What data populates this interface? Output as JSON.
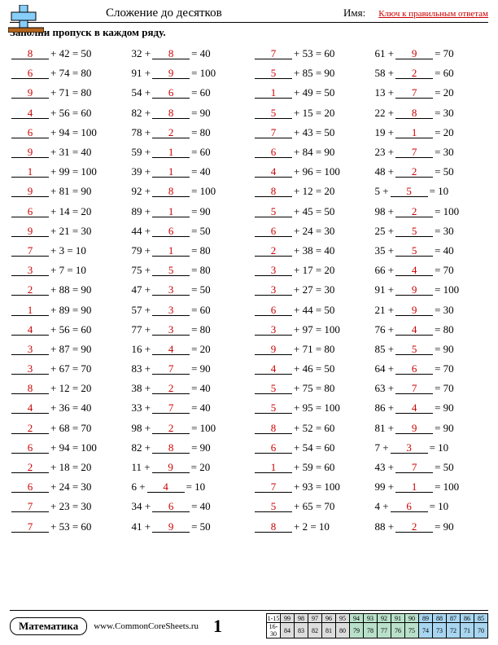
{
  "header": {
    "title": "Сложение до десятков",
    "name_label": "Имя:",
    "answer_key": "Ключ к правильным ответам"
  },
  "instruction": "Заполни пропуск в каждом ряду.",
  "problems": [
    [
      {
        "t": "B",
        "a": "8",
        "b": 42,
        "s": 50
      },
      {
        "t": "A",
        "a": 32,
        "b": "8",
        "s": 40
      },
      {
        "t": "B",
        "a": "7",
        "b": 53,
        "s": 60
      },
      {
        "t": "A",
        "a": 61,
        "b": "9",
        "s": 70
      }
    ],
    [
      {
        "t": "B",
        "a": "6",
        "b": 74,
        "s": 80
      },
      {
        "t": "A",
        "a": 91,
        "b": "9",
        "s": 100
      },
      {
        "t": "B",
        "a": "5",
        "b": 85,
        "s": 90
      },
      {
        "t": "A",
        "a": 58,
        "b": "2",
        "s": 60
      }
    ],
    [
      {
        "t": "B",
        "a": "9",
        "b": 71,
        "s": 80
      },
      {
        "t": "A",
        "a": 54,
        "b": "6",
        "s": 60
      },
      {
        "t": "B",
        "a": "1",
        "b": 49,
        "s": 50
      },
      {
        "t": "A",
        "a": 13,
        "b": "7",
        "s": 20
      }
    ],
    [
      {
        "t": "B",
        "a": "4",
        "b": 56,
        "s": 60
      },
      {
        "t": "A",
        "a": 82,
        "b": "8",
        "s": 90
      },
      {
        "t": "B",
        "a": "5",
        "b": 15,
        "s": 20
      },
      {
        "t": "A",
        "a": 22,
        "b": "8",
        "s": 30
      }
    ],
    [
      {
        "t": "B",
        "a": "6",
        "b": 94,
        "s": 100
      },
      {
        "t": "A",
        "a": 78,
        "b": "2",
        "s": 80
      },
      {
        "t": "B",
        "a": "7",
        "b": 43,
        "s": 50
      },
      {
        "t": "A",
        "a": 19,
        "b": "1",
        "s": 20
      }
    ],
    [
      {
        "t": "B",
        "a": "9",
        "b": 31,
        "s": 40
      },
      {
        "t": "A",
        "a": 59,
        "b": "1",
        "s": 60
      },
      {
        "t": "B",
        "a": "6",
        "b": 84,
        "s": 90
      },
      {
        "t": "A",
        "a": 23,
        "b": "7",
        "s": 30
      }
    ],
    [
      {
        "t": "B",
        "a": "1",
        "b": 99,
        "s": 100
      },
      {
        "t": "A",
        "a": 39,
        "b": "1",
        "s": 40
      },
      {
        "t": "B",
        "a": "4",
        "b": 96,
        "s": 100
      },
      {
        "t": "A",
        "a": 48,
        "b": "2",
        "s": 50
      }
    ],
    [
      {
        "t": "B",
        "a": "9",
        "b": 81,
        "s": 90
      },
      {
        "t": "A",
        "a": 92,
        "b": "8",
        "s": 100
      },
      {
        "t": "B",
        "a": "8",
        "b": 12,
        "s": 20
      },
      {
        "t": "A",
        "a": 5,
        "b": "5",
        "s": 10
      }
    ],
    [
      {
        "t": "B",
        "a": "6",
        "b": 14,
        "s": 20
      },
      {
        "t": "A",
        "a": 89,
        "b": "1",
        "s": 90
      },
      {
        "t": "B",
        "a": "5",
        "b": 45,
        "s": 50
      },
      {
        "t": "A",
        "a": 98,
        "b": "2",
        "s": 100
      }
    ],
    [
      {
        "t": "B",
        "a": "9",
        "b": 21,
        "s": 30
      },
      {
        "t": "A",
        "a": 44,
        "b": "6",
        "s": 50
      },
      {
        "t": "B",
        "a": "6",
        "b": 24,
        "s": 30
      },
      {
        "t": "A",
        "a": 25,
        "b": "5",
        "s": 30
      }
    ],
    [
      {
        "t": "B",
        "a": "7",
        "b": 3,
        "s": 10
      },
      {
        "t": "A",
        "a": 79,
        "b": "1",
        "s": 80
      },
      {
        "t": "B",
        "a": "2",
        "b": 38,
        "s": 40
      },
      {
        "t": "A",
        "a": 35,
        "b": "5",
        "s": 40
      }
    ],
    [
      {
        "t": "B",
        "a": "3",
        "b": 7,
        "s": 10
      },
      {
        "t": "A",
        "a": 75,
        "b": "5",
        "s": 80
      },
      {
        "t": "B",
        "a": "3",
        "b": 17,
        "s": 20
      },
      {
        "t": "A",
        "a": 66,
        "b": "4",
        "s": 70
      }
    ],
    [
      {
        "t": "B",
        "a": "2",
        "b": 88,
        "s": 90
      },
      {
        "t": "A",
        "a": 47,
        "b": "3",
        "s": 50
      },
      {
        "t": "B",
        "a": "3",
        "b": 27,
        "s": 30
      },
      {
        "t": "A",
        "a": 91,
        "b": "9",
        "s": 100
      }
    ],
    [
      {
        "t": "B",
        "a": "1",
        "b": 89,
        "s": 90
      },
      {
        "t": "A",
        "a": 57,
        "b": "3",
        "s": 60
      },
      {
        "t": "B",
        "a": "6",
        "b": 44,
        "s": 50
      },
      {
        "t": "A",
        "a": 21,
        "b": "9",
        "s": 30
      }
    ],
    [
      {
        "t": "B",
        "a": "4",
        "b": 56,
        "s": 60
      },
      {
        "t": "A",
        "a": 77,
        "b": "3",
        "s": 80
      },
      {
        "t": "B",
        "a": "3",
        "b": 97,
        "s": 100
      },
      {
        "t": "A",
        "a": 76,
        "b": "4",
        "s": 80
      }
    ],
    [
      {
        "t": "B",
        "a": "3",
        "b": 87,
        "s": 90
      },
      {
        "t": "A",
        "a": 16,
        "b": "4",
        "s": 20
      },
      {
        "t": "B",
        "a": "9",
        "b": 71,
        "s": 80
      },
      {
        "t": "A",
        "a": 85,
        "b": "5",
        "s": 90
      }
    ],
    [
      {
        "t": "B",
        "a": "3",
        "b": 67,
        "s": 70
      },
      {
        "t": "A",
        "a": 83,
        "b": "7",
        "s": 90
      },
      {
        "t": "B",
        "a": "4",
        "b": 46,
        "s": 50
      },
      {
        "t": "A",
        "a": 64,
        "b": "6",
        "s": 70
      }
    ],
    [
      {
        "t": "B",
        "a": "8",
        "b": 12,
        "s": 20
      },
      {
        "t": "A",
        "a": 38,
        "b": "2",
        "s": 40
      },
      {
        "t": "B",
        "a": "5",
        "b": 75,
        "s": 80
      },
      {
        "t": "A",
        "a": 63,
        "b": "7",
        "s": 70
      }
    ],
    [
      {
        "t": "B",
        "a": "4",
        "b": 36,
        "s": 40
      },
      {
        "t": "A",
        "a": 33,
        "b": "7",
        "s": 40
      },
      {
        "t": "B",
        "a": "5",
        "b": 95,
        "s": 100
      },
      {
        "t": "A",
        "a": 86,
        "b": "4",
        "s": 90
      }
    ],
    [
      {
        "t": "B",
        "a": "2",
        "b": 68,
        "s": 70
      },
      {
        "t": "A",
        "a": 98,
        "b": "2",
        "s": 100
      },
      {
        "t": "B",
        "a": "8",
        "b": 52,
        "s": 60
      },
      {
        "t": "A",
        "a": 81,
        "b": "9",
        "s": 90
      }
    ],
    [
      {
        "t": "B",
        "a": "6",
        "b": 94,
        "s": 100
      },
      {
        "t": "A",
        "a": 82,
        "b": "8",
        "s": 90
      },
      {
        "t": "B",
        "a": "6",
        "b": 54,
        "s": 60
      },
      {
        "t": "A",
        "a": 7,
        "b": "3",
        "s": 10
      }
    ],
    [
      {
        "t": "B",
        "a": "2",
        "b": 18,
        "s": 20
      },
      {
        "t": "A",
        "a": 11,
        "b": "9",
        "s": 20
      },
      {
        "t": "B",
        "a": "1",
        "b": 59,
        "s": 60
      },
      {
        "t": "A",
        "a": 43,
        "b": "7",
        "s": 50
      }
    ],
    [
      {
        "t": "B",
        "a": "6",
        "b": 24,
        "s": 30
      },
      {
        "t": "A",
        "a": 6,
        "b": "4",
        "s": 10
      },
      {
        "t": "B",
        "a": "7",
        "b": 93,
        "s": 100
      },
      {
        "t": "A",
        "a": 99,
        "b": "1",
        "s": 100
      }
    ],
    [
      {
        "t": "B",
        "a": "7",
        "b": 23,
        "s": 30
      },
      {
        "t": "A",
        "a": 34,
        "b": "6",
        "s": 40
      },
      {
        "t": "B",
        "a": "5",
        "b": 65,
        "s": 70
      },
      {
        "t": "A",
        "a": 4,
        "b": "6",
        "s": 10
      }
    ],
    [
      {
        "t": "B",
        "a": "7",
        "b": 53,
        "s": 60
      },
      {
        "t": "A",
        "a": 41,
        "b": "9",
        "s": 50
      },
      {
        "t": "B",
        "a": "8",
        "b": 2,
        "s": 10
      },
      {
        "t": "A",
        "a": 88,
        "b": "2",
        "s": 90
      }
    ]
  ],
  "footer": {
    "subject": "Математика",
    "url": "www.CommonCoreSheets.ru",
    "page": "1",
    "score": {
      "row_labels": [
        "1-15",
        "16-30"
      ],
      "row1": [
        99,
        98,
        97,
        96,
        95,
        94,
        93,
        92,
        91,
        90,
        89,
        88,
        87,
        86,
        85
      ],
      "row2": [
        84,
        83,
        82,
        81,
        80,
        79,
        78,
        77,
        76,
        75,
        74,
        73,
        72,
        71,
        70
      ]
    }
  },
  "colors": {
    "answer_red": "#cc0000",
    "score_c1": "#dddddd",
    "score_c2": "#b9e0c9",
    "score_c3": "#a8d5f0"
  }
}
